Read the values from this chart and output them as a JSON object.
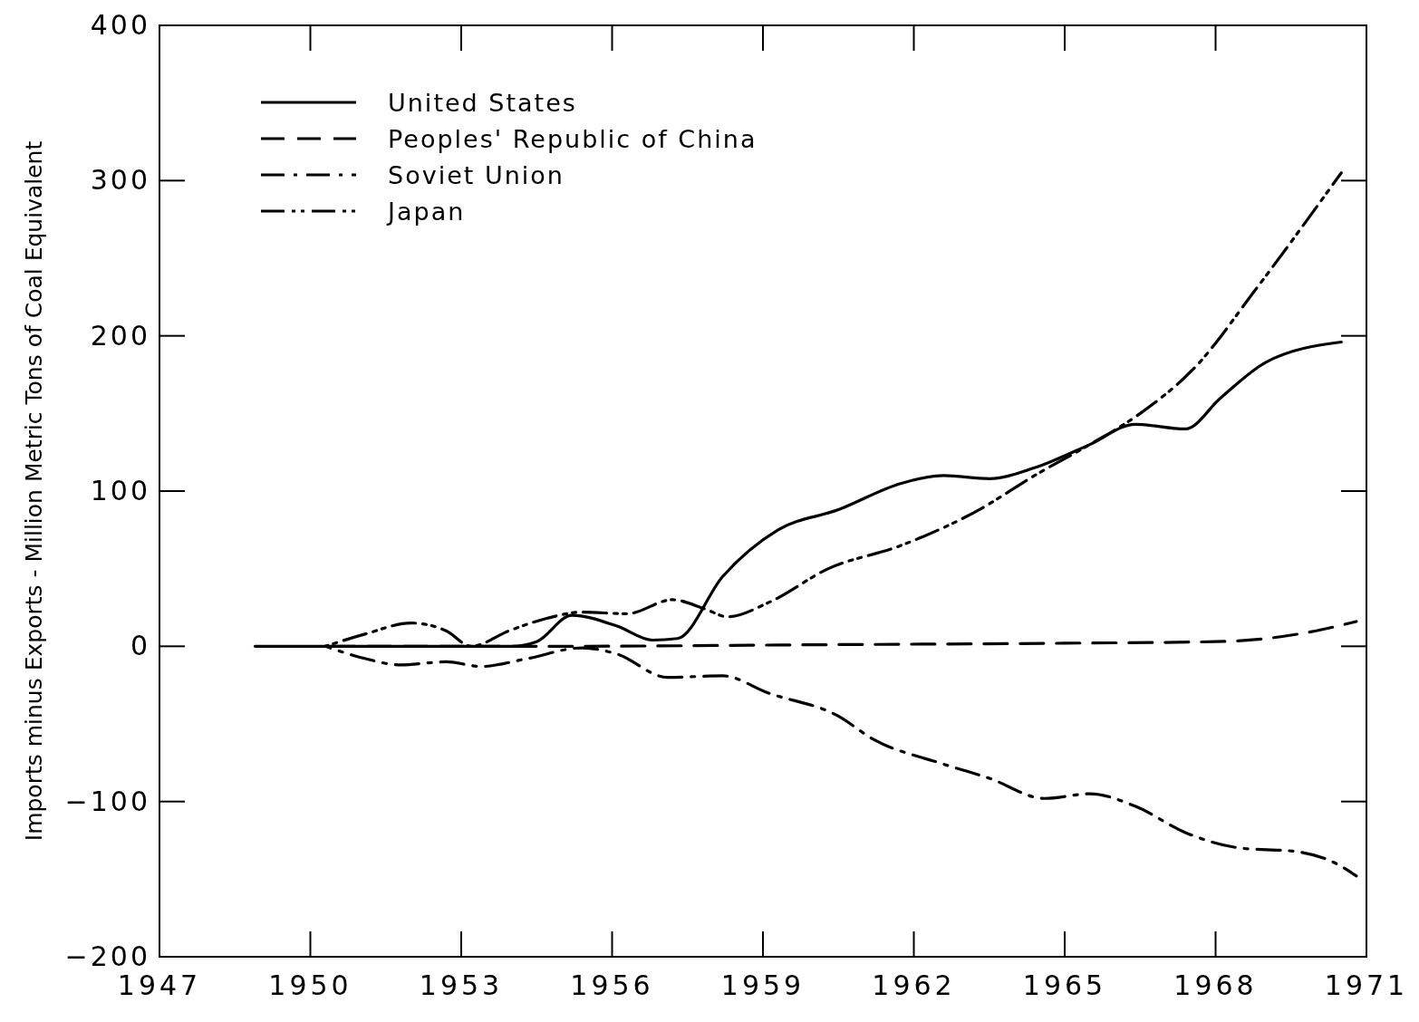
{
  "chart_data": {
    "type": "line",
    "ylabel": "Imports minus Exports - Million Metric Tons of Coal Equivalent",
    "xlim": [
      1947,
      1971
    ],
    "xticks": [
      1947,
      1950,
      1953,
      1956,
      1959,
      1962,
      1965,
      1968,
      1971
    ],
    "ylim": [
      -200,
      400
    ],
    "yticks": [
      -200,
      -100,
      0,
      100,
      200,
      300,
      400
    ],
    "grid": false,
    "legend": "top left",
    "series": [
      {
        "name": "United States",
        "color": "#000000",
        "line_style": "solid",
        "x": [
          1948.9,
          1950,
          1951,
          1952,
          1953,
          1954,
          1954.5,
          1955.2,
          1956.1,
          1956.8,
          1957.3,
          1958.2,
          1959.3,
          1960.5,
          1961.75,
          1962.6,
          1963.5,
          1964.4,
          1965.5,
          1966.4,
          1967.4,
          1968.1,
          1969,
          1970.5
        ],
        "values": [
          0,
          0,
          0,
          0,
          0,
          0,
          3,
          20,
          13,
          4,
          5,
          45,
          75,
          88,
          105,
          110,
          108,
          115,
          130,
          143,
          140,
          160,
          183,
          196
        ]
      },
      {
        "name": "Peoples' Republic of China",
        "color": "#000000",
        "line_style": "dashed",
        "x": [
          1950.3,
          1955,
          1960,
          1965,
          1968,
          1969,
          1970,
          1970.8
        ],
        "values": [
          0,
          0,
          1,
          2,
          3,
          5,
          10,
          16
        ]
      },
      {
        "name": "Soviet Union",
        "color": "#000000",
        "line_style": "dashdot",
        "x": [
          1950.3,
          1951.1,
          1951.8,
          1952.7,
          1953.4,
          1954.3,
          1955.4,
          1956.1,
          1957.1,
          1958.2,
          1959.1,
          1960.5,
          1961.2,
          1962.5,
          1963.5,
          1964.6,
          1965.5,
          1966.4,
          1967.4,
          1968.5,
          1969.55,
          1970.4,
          1970.8
        ],
        "values": [
          0,
          -8,
          -12,
          -10,
          -13,
          -8,
          -1,
          -5,
          -20,
          -19,
          -30,
          -45,
          -60,
          -75,
          -85,
          -98,
          -95,
          -103,
          -120,
          -130,
          -132,
          -140,
          -148
        ]
      },
      {
        "name": "Japan",
        "color": "#000000",
        "line_style": "dashdotdot",
        "x": [
          1950.3,
          1951.1,
          1952,
          1952.7,
          1953.2,
          1953.95,
          1954.7,
          1955.4,
          1956.3,
          1957.2,
          1957.85,
          1958.3,
          1959.1,
          1960.3,
          1961.75,
          1963.3,
          1964.4,
          1965.5,
          1966.5,
          1967.6,
          1968.8,
          1970.5
        ],
        "values": [
          0,
          8,
          15,
          10,
          0,
          10,
          18,
          22,
          21,
          30,
          24,
          19,
          28,
          50,
          65,
          88,
          110,
          130,
          150,
          180,
          230,
          305
        ]
      }
    ]
  }
}
